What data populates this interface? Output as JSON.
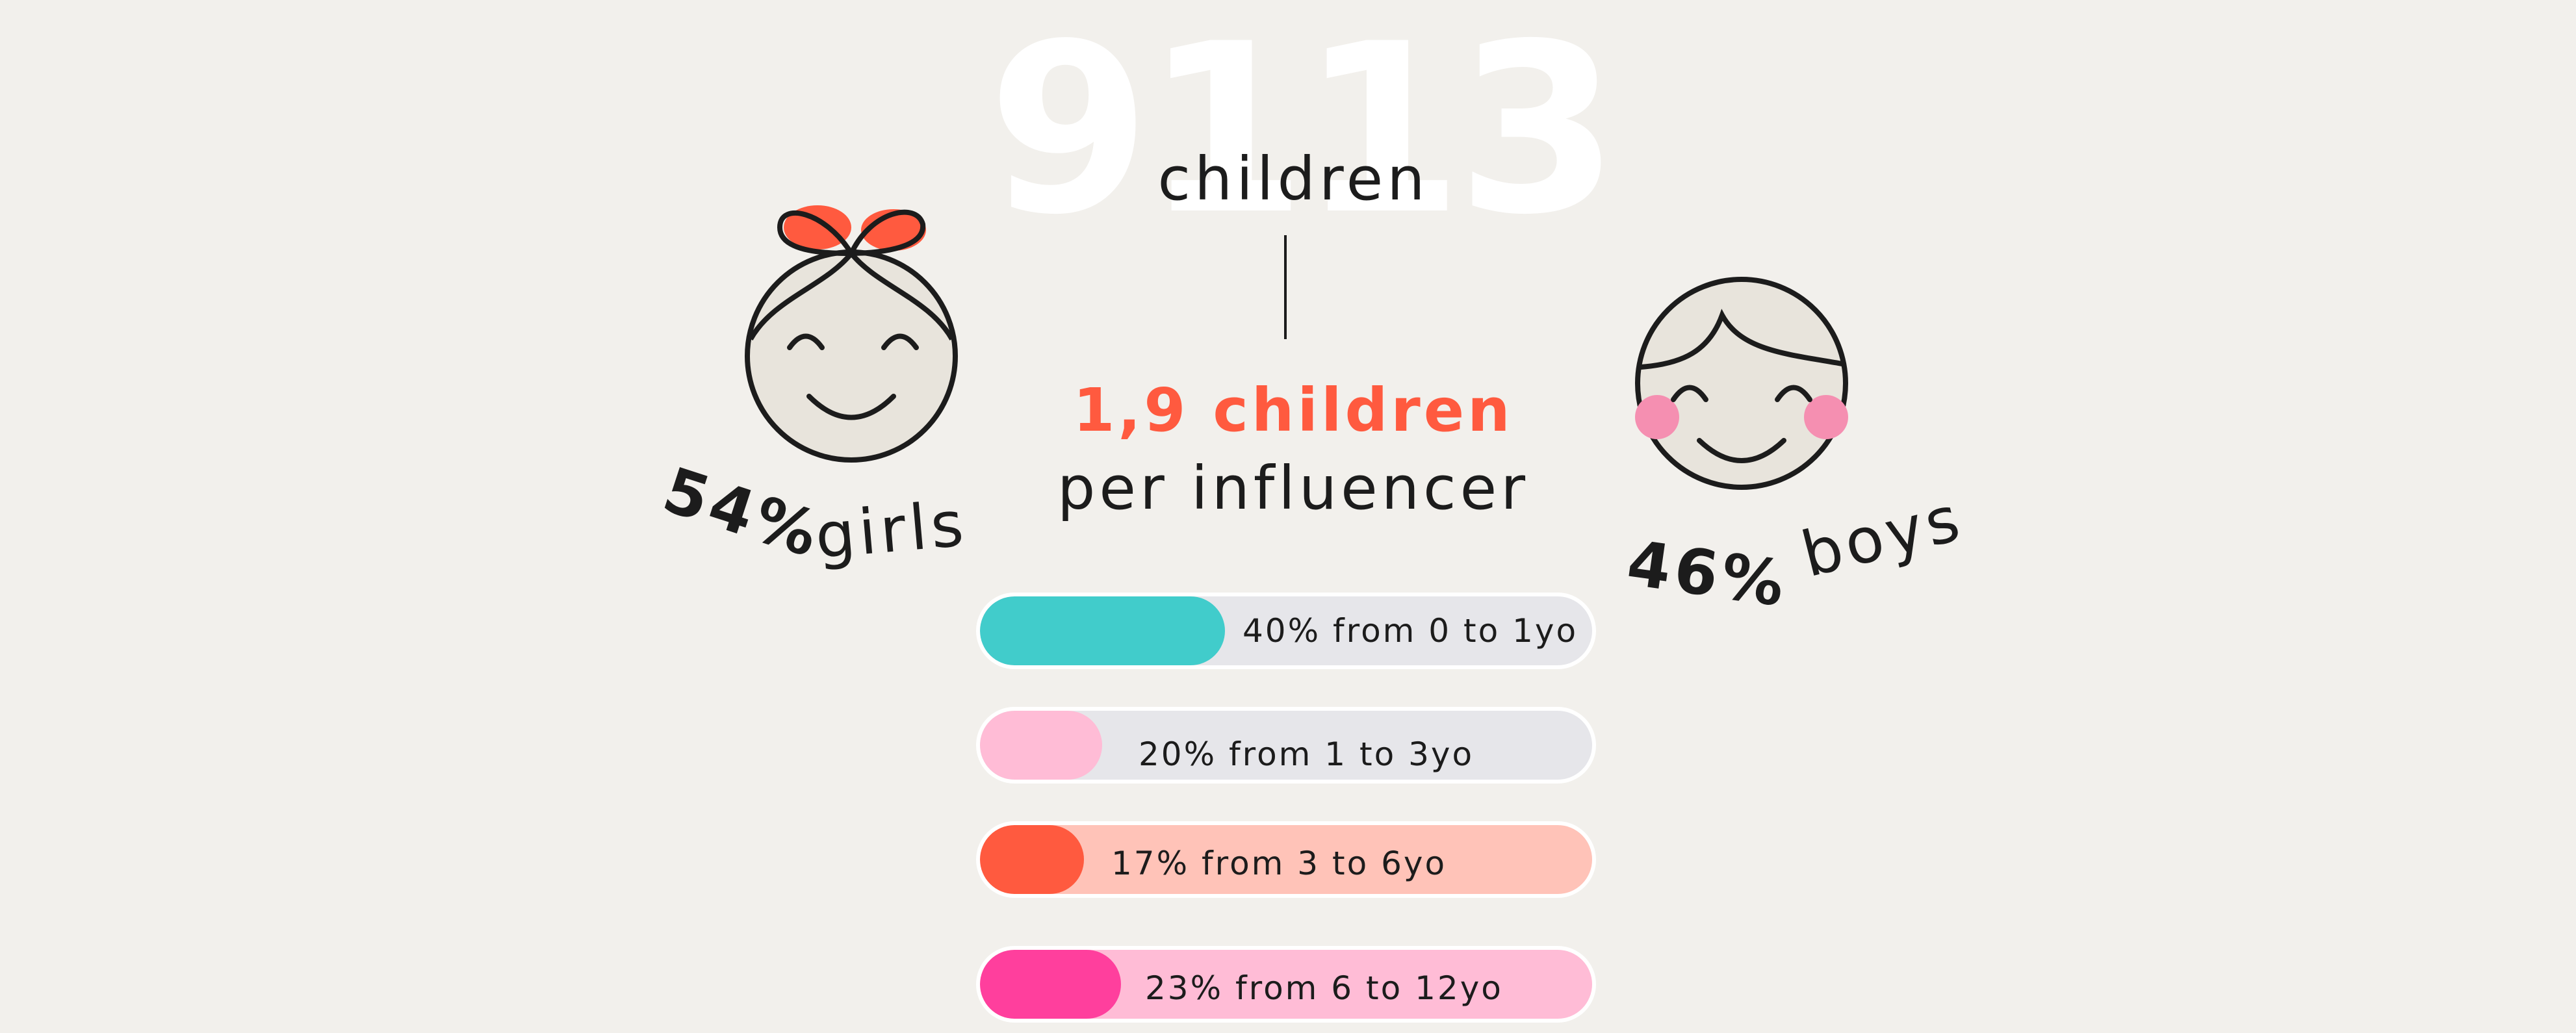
{
  "headline": {
    "number": "9113",
    "unit": "children"
  },
  "ratio": {
    "value_text": "1,9 children",
    "suffix_text": "per influencer"
  },
  "gender": {
    "girls": {
      "percent": "54%",
      "label": "girls"
    },
    "boys": {
      "percent": "46%",
      "label": "boys"
    }
  },
  "age_bars": [
    {
      "label": "40% from 0 to 1yo",
      "value": 40,
      "fill_color": "#41cccb",
      "track_color": "#e6e6ea"
    },
    {
      "label": "20% from 1 to 3yo",
      "value": 20,
      "fill_color": "#ffbcd6",
      "track_color": "#e6e6ea"
    },
    {
      "label": "17% from 3 to 6yo",
      "value": 17,
      "fill_color": "#ff5a3f",
      "track_color": "#ffc3b8"
    },
    {
      "label": "23% from 6 to 12yo",
      "value": 23,
      "fill_color": "#ff3f9d",
      "track_color": "#ffbcd6"
    }
  ],
  "colors": {
    "background": "#f2f0ec",
    "accent": "#ff5a3f",
    "blush": "#f58fb1",
    "face": "#e8e4dc"
  }
}
